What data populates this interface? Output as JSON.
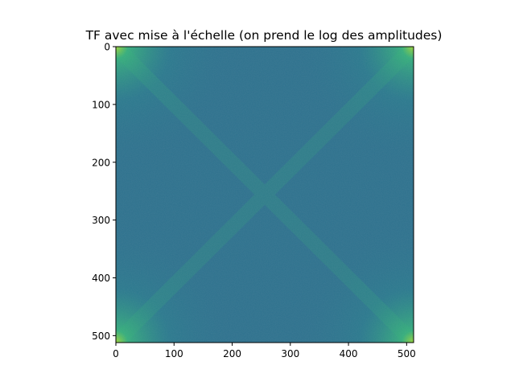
{
  "chart_data": {
    "type": "heatmap",
    "title": "TF avec mise à l'échelle (on prend le log des amplitudes)",
    "xlabel": "",
    "ylabel": "",
    "x_extent": [
      0,
      512
    ],
    "y_extent": [
      0,
      512
    ],
    "y_inverted": true,
    "x_ticks": [
      0,
      100,
      200,
      300,
      400,
      500
    ],
    "y_ticks": [
      0,
      100,
      200,
      300,
      400,
      500
    ],
    "colormap": "viridis",
    "content": "log-amplitude 2D Fourier transform; bright (yellow-green) energy concentrated in the four corners, fading along the diagonals toward a uniform teal center",
    "colors": {
      "background": "#2c718e",
      "corner_peak": "#b5de2b",
      "diagonal_glow": "#35b779",
      "mid_glow": "#26828e",
      "axis": "#000000"
    },
    "grid": false,
    "legend": "none"
  }
}
